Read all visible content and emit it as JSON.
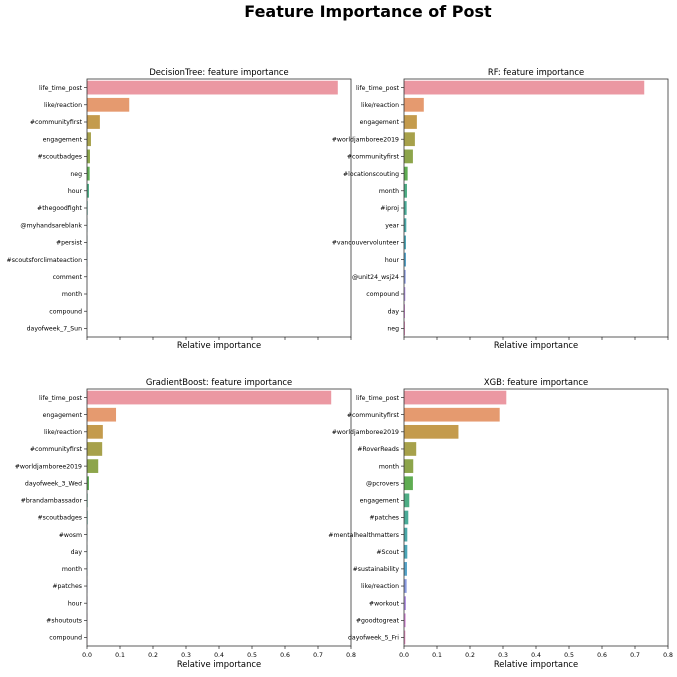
{
  "figure": {
    "title": "Feature Importance of Post"
  },
  "chart_data": [
    {
      "type": "bar",
      "orientation": "horizontal",
      "title": "DecisionTree: feature importance",
      "xlabel": "Relative importance",
      "ylabel": "",
      "xlim": [
        0,
        0.8
      ],
      "show_xtick_labels": false,
      "xticks": [
        0,
        0.1,
        0.2,
        0.3,
        0.4,
        0.5,
        0.6,
        0.7,
        0.8
      ],
      "categories": [
        "life_time_post",
        "like/reaction",
        "#communityfirst",
        "engagement",
        "#scoutbadges",
        "neg",
        "hour",
        "#thegoodfight",
        "@myhandsareblank",
        "#persist",
        "#scoutsforclimateaction",
        "comment",
        "month",
        "compound",
        "dayofweek_7_Sun"
      ],
      "values": [
        0.76,
        0.128,
        0.039,
        0.012,
        0.009,
        0.008,
        0.006,
        0.002,
        0.001,
        0.001,
        0.001,
        0.0,
        0.0,
        0.0,
        0.0
      ],
      "grid": false
    },
    {
      "type": "bar",
      "orientation": "horizontal",
      "title": "RF: feature importance",
      "xlabel": "Relative importance",
      "ylabel": "",
      "xlim": [
        0,
        0.8
      ],
      "show_xtick_labels": false,
      "xticks": [
        0,
        0.1,
        0.2,
        0.3,
        0.4,
        0.5,
        0.6,
        0.7,
        0.8
      ],
      "categories": [
        "life_time_post",
        "like/reaction",
        "engagement",
        "#worldjamboree2019",
        "#communityfirst",
        "#locationscouting",
        "month",
        "#iproj",
        "year",
        "#vancouvervolunteer",
        "hour",
        "@unit24_wsj24",
        "compound",
        "day",
        "neg"
      ],
      "values": [
        0.728,
        0.06,
        0.039,
        0.033,
        0.027,
        0.011,
        0.009,
        0.008,
        0.007,
        0.006,
        0.006,
        0.005,
        0.004,
        0.003,
        0.003
      ],
      "grid": false
    },
    {
      "type": "bar",
      "orientation": "horizontal",
      "title": "GradientBoost: feature importance",
      "xlabel": "Relative importance",
      "ylabel": "",
      "xlim": [
        0,
        0.8
      ],
      "show_xtick_labels": true,
      "xticks": [
        0,
        0.1,
        0.2,
        0.3,
        0.4,
        0.5,
        0.6,
        0.7,
        0.8
      ],
      "xtick_labels": [
        "0.0",
        "0.1",
        "0.2",
        "0.3",
        "0.4",
        "0.5",
        "0.6",
        "0.7",
        "0.8"
      ],
      "categories": [
        "life_time_post",
        "engagement",
        "like/reaction",
        "#communityfirst",
        "#worldjamboree2019",
        "dayofweek_3_Wed",
        "#brandambassador",
        "#scoutbadges",
        "#wosm",
        "day",
        "month",
        "#patches",
        "hour",
        "#shoutouts",
        "compound"
      ],
      "values": [
        0.74,
        0.088,
        0.048,
        0.046,
        0.034,
        0.006,
        0.002,
        0.002,
        0.001,
        0.001,
        0.001,
        0.001,
        0.001,
        0.001,
        0.001
      ],
      "grid": false
    },
    {
      "type": "bar",
      "orientation": "horizontal",
      "title": "XGB: feature importance",
      "xlabel": "Relative importance",
      "ylabel": "",
      "xlim": [
        0,
        0.8
      ],
      "show_xtick_labels": true,
      "xticks": [
        0,
        0.1,
        0.2,
        0.3,
        0.4,
        0.5,
        0.6,
        0.7,
        0.8
      ],
      "xtick_labels": [
        "0.0",
        "0.1",
        "0.2",
        "0.3",
        "0.4",
        "0.5",
        "0.6",
        "0.7",
        "0.8"
      ],
      "categories": [
        "life_time_post",
        "#communityfirst",
        "#worldjamboree2019",
        "#RoverReads",
        "month",
        "@pcrovers",
        "engagement",
        "#patches",
        "#mentalhealthmatters",
        "#Scout",
        "#sustainability",
        "like/reaction",
        "#workout",
        "#goodtogreat",
        "dayofweek_5_Fri"
      ],
      "values": [
        0.31,
        0.29,
        0.165,
        0.037,
        0.028,
        0.027,
        0.016,
        0.013,
        0.01,
        0.01,
        0.009,
        0.008,
        0.006,
        0.005,
        0.004
      ],
      "grid": false
    }
  ],
  "palette": [
    "#eb98a2",
    "#e59a6f",
    "#c49b4d",
    "#a7a14b",
    "#8da54b",
    "#5fac52",
    "#4ead85",
    "#4aab98",
    "#4ba8a8",
    "#4ca7b8",
    "#55a3c9",
    "#8a9be0",
    "#b594e6",
    "#d98edb",
    "#e88fc3"
  ]
}
